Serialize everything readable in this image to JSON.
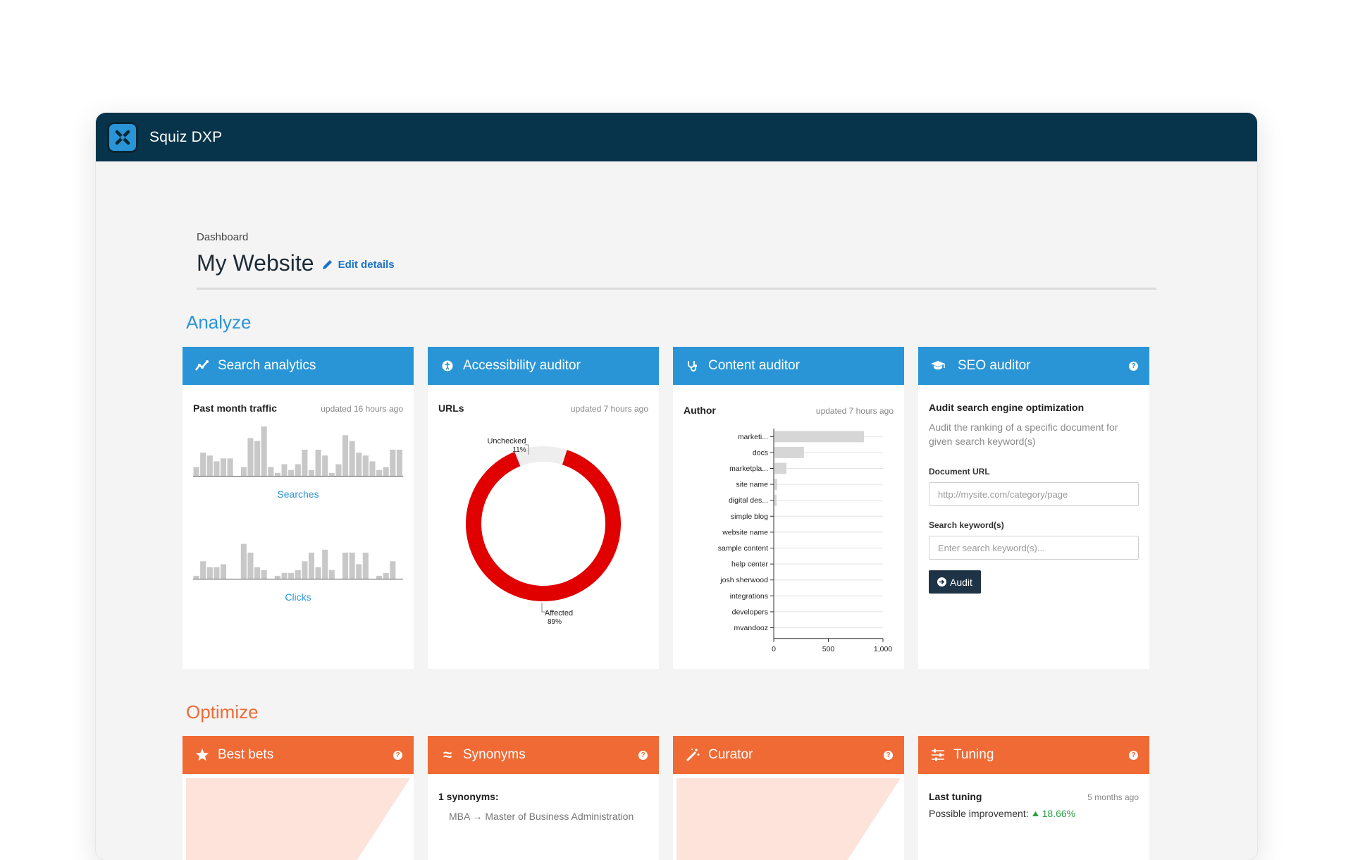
{
  "app": {
    "title": "Squiz DXP"
  },
  "header": {
    "breadcrumb": "Dashboard",
    "title": "My Website",
    "edit_label": "Edit details"
  },
  "sections": {
    "analyze": "Analyze",
    "optimize": "Optimize"
  },
  "colors": {
    "analyze_blue": "#2a95d6",
    "optimize_orange": "#f06a35",
    "topbar": "#07344a",
    "donut_affected": "#e00000",
    "donut_unchecked": "#eeeeee",
    "positive_green": "#2e9e45"
  },
  "cards": {
    "search_analytics": {
      "title": "Search analytics",
      "icon": "trend-line-icon",
      "label": "Past month traffic",
      "updated": "updated 16 hours ago",
      "searches_label": "Searches",
      "clicks_label": "Clicks"
    },
    "accessibility": {
      "title": "Accessibility auditor",
      "icon": "accessibility-icon",
      "label": "URLs",
      "updated": "updated 7 hours ago"
    },
    "content": {
      "title": "Content auditor",
      "icon": "stethoscope-icon",
      "label": "Author",
      "updated": "updated 7 hours ago"
    },
    "seo": {
      "title": "SEO auditor",
      "icon": "graduation-cap-icon",
      "help": "?",
      "heading": "Audit search engine optimization",
      "description": "Audit the ranking of a specific document for given search keyword(s)",
      "url_label": "Document URL",
      "url_placeholder": "http://mysite.com/category/page",
      "keyword_label": "Search keyword(s)",
      "keyword_placeholder": "Enter search keyword(s)...",
      "button": "Audit"
    },
    "best_bets": {
      "title": "Best bets",
      "icon": "star-icon",
      "help": "?"
    },
    "synonyms": {
      "title": "Synonyms",
      "icon": "approx-icon",
      "help": "?",
      "count_label": "1 synonyms:",
      "from": "MBA",
      "arrow": "→",
      "to": "Master of Business Administration"
    },
    "curator": {
      "title": "Curator",
      "icon": "magic-wand-icon",
      "help": "?"
    },
    "tuning": {
      "title": "Tuning",
      "icon": "sliders-icon",
      "help": "?",
      "label": "Last tuning",
      "updated": "5 months ago",
      "improvement_label": "Possible improvement:",
      "improvement_value": "18.66%"
    }
  },
  "chart_data": [
    {
      "type": "bar",
      "name_ref": "Searches",
      "values": [
        3,
        8,
        7,
        5,
        6,
        6,
        0,
        3,
        13,
        12,
        17,
        3,
        1,
        4,
        2,
        4,
        9,
        2,
        9,
        7,
        1,
        4,
        14,
        12,
        8,
        7,
        5,
        2,
        3,
        9,
        9
      ]
    },
    {
      "type": "bar",
      "name_ref": "Clicks",
      "values": [
        1,
        6,
        4,
        4,
        5,
        0,
        0,
        12,
        9,
        4,
        3,
        0,
        1,
        2,
        2,
        3,
        6,
        9,
        4,
        10,
        3,
        0,
        9,
        9,
        5,
        9,
        0,
        1,
        2,
        6,
        0
      ]
    },
    {
      "type": "pie",
      "slices": [
        {
          "label": "Unchecked",
          "percent_label": "11%",
          "value": 11
        },
        {
          "label": "Affected",
          "percent_label": "89%",
          "value": 89
        }
      ]
    },
    {
      "type": "bar",
      "orientation": "horizontal",
      "categories": [
        "marketi...",
        "docs",
        "marketpla...",
        "site name",
        "digital des...",
        "simple blog",
        "website name",
        "sample content",
        "help center",
        "josh sherwood",
        "integrations",
        "developers",
        "mvandooz"
      ],
      "values": [
        820,
        270,
        110,
        25,
        20,
        0,
        0,
        0,
        0,
        0,
        0,
        0,
        0
      ],
      "xlim": [
        0,
        1000
      ],
      "xticks": [
        "0",
        "500",
        "1,000"
      ]
    }
  ]
}
